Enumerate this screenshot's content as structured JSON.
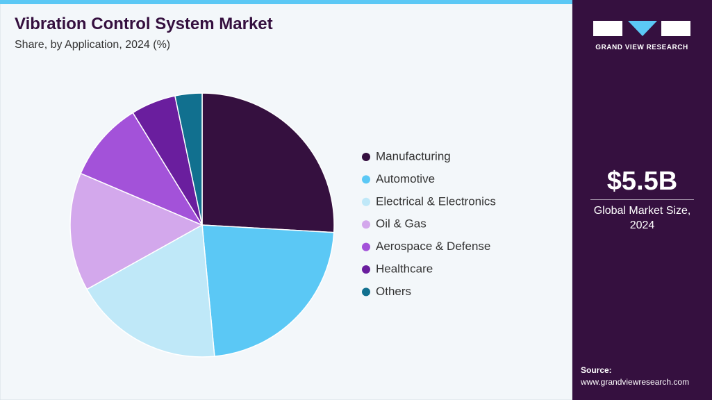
{
  "chart_data": {
    "type": "pie",
    "title": "Vibration Control System Market",
    "subtitle": "Share, by Application, 2024 (%)",
    "categories": [
      "Manufacturing",
      "Automotive",
      "Electrical & Electronics",
      "Oil & Gas",
      "Aerospace & Defense",
      "Healthcare",
      "Others"
    ],
    "values": [
      25.9,
      22.6,
      18.4,
      14.5,
      9.8,
      5.5,
      3.3
    ],
    "colors": [
      "#35103f",
      "#5bc8f5",
      "#bfe8f8",
      "#d3a8ec",
      "#a352d9",
      "#6a1e9e",
      "#11708f"
    ]
  },
  "sidebar": {
    "brand": "GRAND VIEW RESEARCH",
    "market_size": "$5.5B",
    "market_size_label": "Global Market Size, 2024",
    "source_label": "Source:",
    "source_url": "www.grandviewresearch.com"
  }
}
